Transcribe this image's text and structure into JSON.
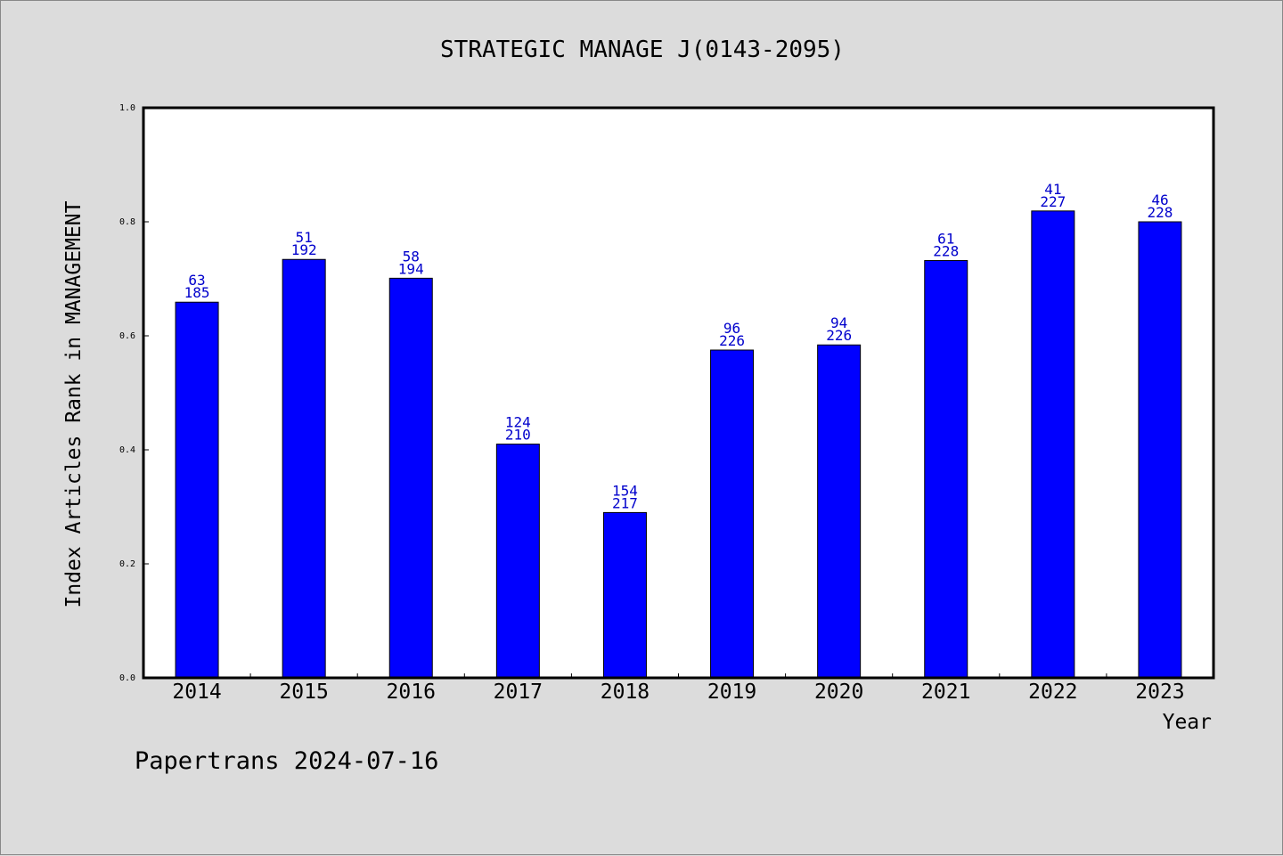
{
  "colors": {
    "bar": "#0000ff",
    "label": "#0000cc",
    "background": "#dcdcdc",
    "plot": "#ffffff"
  },
  "footer": "Papertrans 2024-07-16",
  "chart_data": {
    "type": "bar",
    "title": "STRATEGIC MANAGE J(0143-2095)",
    "xlabel": "Year",
    "ylabel": "Index Articles Rank in MANAGEMENT",
    "ylim": [
      0,
      1.0
    ],
    "yticks": [
      "0.0",
      "0.2",
      "0.4",
      "0.6",
      "0.8",
      "1.0"
    ],
    "grid": false,
    "categories": [
      "2014",
      "2015",
      "2016",
      "2017",
      "2018",
      "2019",
      "2020",
      "2021",
      "2022",
      "2023"
    ],
    "values": [
      0.659,
      0.734,
      0.701,
      0.41,
      0.29,
      0.575,
      0.584,
      0.732,
      0.819,
      0.8
    ],
    "rank": [
      "63",
      "51",
      "58",
      "124",
      "154",
      "96",
      "94",
      "61",
      "41",
      "46"
    ],
    "total": [
      "185",
      "192",
      "194",
      "210",
      "217",
      "226",
      "226",
      "228",
      "227",
      "228"
    ]
  }
}
